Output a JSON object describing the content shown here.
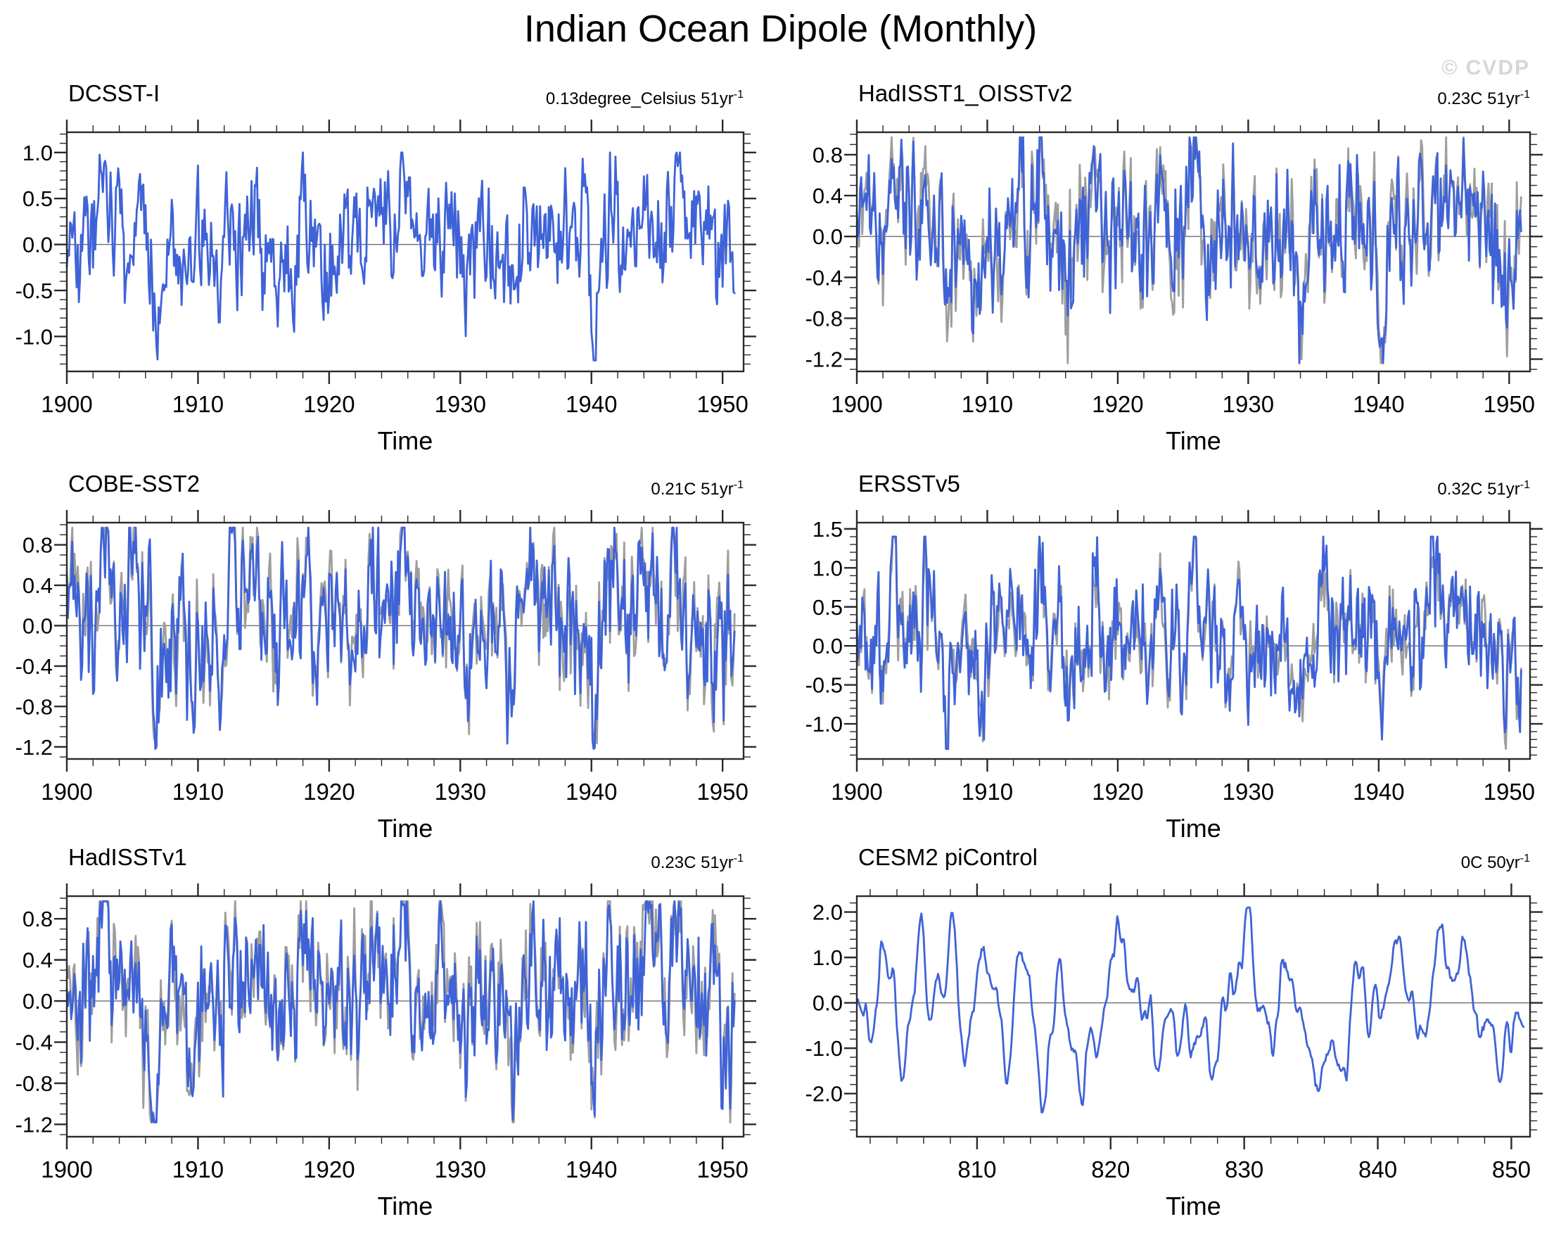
{
  "page_title": "Indian Ocean Dipole (Monthly)",
  "watermark": "© CVDP",
  "colors": {
    "series_blue": "#3F63D7",
    "series_gray": "#9E9E9E",
    "zero_line": "#6e6e6e",
    "axis": "#2a2a2a",
    "watermark_gray": "#d7d7d7"
  },
  "chart_data": [
    {
      "type": "line",
      "title": "DCSST-I",
      "trend_label": "0.13degree_Celsius 51yr",
      "trend_superscript": "-1",
      "xlabel": "Time",
      "xlim": [
        1900,
        1951.6
      ],
      "ylim": [
        -1.38,
        1.22
      ],
      "xticks": [
        1900,
        1910,
        1920,
        1930,
        1940,
        1950
      ],
      "xtick_labels": [
        "1900",
        "1910",
        "1920",
        "1930",
        "1940",
        "1950"
      ],
      "x_minor_step": 2,
      "yticks": [
        1.0,
        0.5,
        0.0,
        -0.5,
        -1.0
      ],
      "ytick_labels": [
        "1.0",
        "0.5",
        "0.0",
        "-0.5",
        "-1.0"
      ],
      "y_minor_step": 0.1,
      "zero_line": true,
      "n_points": 612,
      "x_start": 1900,
      "x_step_years": 0.0833333,
      "smooth": 1,
      "clamp": [
        -1.26,
        1.0
      ],
      "common": {
        "seed": 101,
        "ar": 0.5,
        "amp": 0.78
      },
      "events": [
        {
          "x": 1902.8,
          "amp": 0.95,
          "w": 0.5
        },
        {
          "x": 1905.2,
          "amp": 0.45,
          "w": 0.35
        },
        {
          "x": 1906.8,
          "amp": -0.95,
          "w": 0.4
        },
        {
          "x": 1909.5,
          "amp": -0.5,
          "w": 0.4
        },
        {
          "x": 1912.5,
          "amp": 0.5,
          "w": 0.45
        },
        {
          "x": 1914.0,
          "amp": 0.6,
          "w": 0.5
        },
        {
          "x": 1916.1,
          "amp": -0.55,
          "w": 0.4
        },
        {
          "x": 1918.2,
          "amp": 0.65,
          "w": 0.45
        },
        {
          "x": 1923.3,
          "amp": 0.7,
          "w": 0.4
        },
        {
          "x": 1925.8,
          "amp": 0.8,
          "w": 0.6
        },
        {
          "x": 1930.5,
          "amp": -0.4,
          "w": 0.5
        },
        {
          "x": 1933.9,
          "amp": -0.9,
          "w": 0.35
        },
        {
          "x": 1935.5,
          "amp": 0.55,
          "w": 0.6
        },
        {
          "x": 1940.2,
          "amp": -1.05,
          "w": 0.3
        },
        {
          "x": 1941.6,
          "amp": 0.55,
          "w": 0.4
        },
        {
          "x": 1944.3,
          "amp": 0.7,
          "w": 0.8
        },
        {
          "x": 1946.5,
          "amp": 0.5,
          "w": 0.5
        },
        {
          "x": 1950.0,
          "amp": -0.3,
          "w": 0.4
        }
      ],
      "series": [
        {
          "name": "DCSST-I",
          "color": "series_blue",
          "gain": 1.0,
          "own_seed": 11,
          "own_ar": 0.3,
          "own_amp": 0.0,
          "event_scale": 1.0
        }
      ]
    },
    {
      "type": "line",
      "title": "HadISST1_OISSTv2",
      "trend_label": "0.23C 51yr",
      "trend_superscript": "-1",
      "xlabel": "Time",
      "xlim": [
        1900,
        1951.6
      ],
      "ylim": [
        -1.32,
        1.02
      ],
      "xticks": [
        1900,
        1910,
        1920,
        1930,
        1940,
        1950
      ],
      "xtick_labels": [
        "1900",
        "1910",
        "1920",
        "1930",
        "1940",
        "1950"
      ],
      "x_minor_step": 2,
      "yticks": [
        0.8,
        0.4,
        0.0,
        -0.4,
        -0.8,
        -1.2
      ],
      "ytick_labels": [
        "0.8",
        "0.4",
        "0.0",
        "-0.4",
        "-0.8",
        "-1.2"
      ],
      "y_minor_step": 0.1,
      "zero_line": true,
      "n_points": 612,
      "x_start": 1900,
      "x_step_years": 0.0833333,
      "smooth": 1,
      "clamp": [
        -1.24,
        0.97
      ],
      "common": {
        "seed": 202,
        "ar": 0.5,
        "amp": 0.72
      },
      "events": [
        {
          "x": 1902.8,
          "amp": 0.95,
          "w": 0.5
        },
        {
          "x": 1905.2,
          "amp": 0.45,
          "w": 0.35
        },
        {
          "x": 1906.8,
          "amp": -0.95,
          "w": 0.4
        },
        {
          "x": 1909.5,
          "amp": -0.5,
          "w": 0.4
        },
        {
          "x": 1912.5,
          "amp": 0.5,
          "w": 0.45
        },
        {
          "x": 1914.0,
          "amp": 0.6,
          "w": 0.5
        },
        {
          "x": 1916.1,
          "amp": -0.55,
          "w": 0.4
        },
        {
          "x": 1918.2,
          "amp": 0.65,
          "w": 0.45
        },
        {
          "x": 1923.3,
          "amp": 0.7,
          "w": 0.4
        },
        {
          "x": 1925.8,
          "amp": 0.8,
          "w": 0.6
        },
        {
          "x": 1930.5,
          "amp": -0.4,
          "w": 0.5
        },
        {
          "x": 1933.9,
          "amp": -0.9,
          "w": 0.35
        },
        {
          "x": 1940.2,
          "amp": -1.05,
          "w": 0.3
        },
        {
          "x": 1941.6,
          "amp": 0.55,
          "w": 0.4
        },
        {
          "x": 1944.3,
          "amp": 0.7,
          "w": 0.8
        },
        {
          "x": 1946.5,
          "amp": 0.5,
          "w": 0.5
        },
        {
          "x": 1950.0,
          "amp": -0.3,
          "w": 0.4
        }
      ],
      "series": [
        {
          "name": "gray companion",
          "color": "series_gray",
          "gain": 1.04,
          "own_seed": 21,
          "own_ar": 0.35,
          "own_amp": 0.3,
          "event_scale": 1.08
        },
        {
          "name": "HadISST1_OISSTv2",
          "color": "series_blue",
          "gain": 0.97,
          "own_seed": 22,
          "own_ar": 0.35,
          "own_amp": 0.3,
          "event_scale": 1.0
        }
      ]
    },
    {
      "type": "line",
      "title": "COBE-SST2",
      "trend_label": "0.21C 51yr",
      "trend_superscript": "-1",
      "xlabel": "Time",
      "xlim": [
        1900,
        1951.6
      ],
      "ylim": [
        -1.32,
        1.02
      ],
      "xticks": [
        1900,
        1910,
        1920,
        1930,
        1940,
        1950
      ],
      "xtick_labels": [
        "1900",
        "1910",
        "1920",
        "1930",
        "1940",
        "1950"
      ],
      "x_minor_step": 2,
      "yticks": [
        0.8,
        0.4,
        0.0,
        -0.4,
        -0.8,
        -1.2
      ],
      "ytick_labels": [
        "0.8",
        "0.4",
        "0.0",
        "-0.4",
        "-0.8",
        "-1.2"
      ],
      "y_minor_step": 0.1,
      "zero_line": true,
      "n_points": 612,
      "x_start": 1900,
      "x_step_years": 0.0833333,
      "smooth": 1,
      "clamp": [
        -1.22,
        0.97
      ],
      "common": {
        "seed": 303,
        "ar": 0.5,
        "amp": 0.72
      },
      "events": [
        {
          "x": 1902.8,
          "amp": 0.95,
          "w": 0.5
        },
        {
          "x": 1905.2,
          "amp": 0.45,
          "w": 0.35
        },
        {
          "x": 1906.8,
          "amp": -0.95,
          "w": 0.4
        },
        {
          "x": 1909.5,
          "amp": -0.5,
          "w": 0.4
        },
        {
          "x": 1912.5,
          "amp": 0.5,
          "w": 0.45
        },
        {
          "x": 1914.0,
          "amp": 0.6,
          "w": 0.5
        },
        {
          "x": 1916.1,
          "amp": -0.55,
          "w": 0.4
        },
        {
          "x": 1918.2,
          "amp": 0.65,
          "w": 0.45
        },
        {
          "x": 1923.3,
          "amp": 0.7,
          "w": 0.4
        },
        {
          "x": 1925.8,
          "amp": 0.8,
          "w": 0.6
        },
        {
          "x": 1930.5,
          "amp": -0.4,
          "w": 0.5
        },
        {
          "x": 1933.9,
          "amp": -0.9,
          "w": 0.35
        },
        {
          "x": 1935.5,
          "amp": 0.55,
          "w": 0.6
        },
        {
          "x": 1940.2,
          "amp": -1.05,
          "w": 0.3
        },
        {
          "x": 1941.6,
          "amp": 0.55,
          "w": 0.4
        },
        {
          "x": 1944.3,
          "amp": 0.7,
          "w": 0.8
        },
        {
          "x": 1946.5,
          "amp": 0.5,
          "w": 0.5
        },
        {
          "x": 1950.0,
          "amp": -0.3,
          "w": 0.4
        }
      ],
      "series": [
        {
          "name": "gray companion",
          "color": "series_gray",
          "gain": 1.05,
          "own_seed": 31,
          "own_ar": 0.35,
          "own_amp": 0.3,
          "event_scale": 1.08
        },
        {
          "name": "COBE-SST2",
          "color": "series_blue",
          "gain": 0.97,
          "own_seed": 32,
          "own_ar": 0.35,
          "own_amp": 0.3,
          "event_scale": 1.0
        }
      ]
    },
    {
      "type": "line",
      "title": "ERSSTv5",
      "trend_label": "0.32C 51yr",
      "trend_superscript": "-1",
      "xlabel": "Time",
      "xlim": [
        1900,
        1951.6
      ],
      "ylim": [
        -1.45,
        1.58
      ],
      "xticks": [
        1900,
        1910,
        1920,
        1930,
        1940,
        1950
      ],
      "xtick_labels": [
        "1900",
        "1910",
        "1920",
        "1930",
        "1940",
        "1950"
      ],
      "x_minor_step": 2,
      "yticks": [
        1.5,
        1.0,
        0.5,
        0.0,
        -0.5,
        -1.0
      ],
      "ytick_labels": [
        "1.5",
        "1.0",
        "0.5",
        "0.0",
        "-0.5",
        "-1.0"
      ],
      "y_minor_step": 0.1,
      "zero_line": true,
      "n_points": 612,
      "x_start": 1900,
      "x_step_years": 0.0833333,
      "smooth": 1,
      "clamp": [
        -1.32,
        1.4
      ],
      "common": {
        "seed": 404,
        "ar": 0.5,
        "amp": 0.82
      },
      "events": [
        {
          "x": 1902.8,
          "amp": 0.95,
          "w": 0.5
        },
        {
          "x": 1905.2,
          "amp": 0.45,
          "w": 0.35
        },
        {
          "x": 1906.8,
          "amp": -1.0,
          "w": 0.4
        },
        {
          "x": 1909.5,
          "amp": -0.5,
          "w": 0.4
        },
        {
          "x": 1912.5,
          "amp": 0.5,
          "w": 0.45
        },
        {
          "x": 1914.0,
          "amp": 0.6,
          "w": 0.5
        },
        {
          "x": 1916.1,
          "amp": -0.6,
          "w": 0.4
        },
        {
          "x": 1918.2,
          "amp": 0.7,
          "w": 0.45
        },
        {
          "x": 1923.3,
          "amp": 0.8,
          "w": 0.4
        },
        {
          "x": 1925.8,
          "amp": 0.85,
          "w": 0.6
        },
        {
          "x": 1930.5,
          "amp": -0.45,
          "w": 0.5
        },
        {
          "x": 1933.9,
          "amp": -0.95,
          "w": 0.35
        },
        {
          "x": 1935.5,
          "amp": 0.6,
          "w": 0.6
        },
        {
          "x": 1940.2,
          "amp": -1.1,
          "w": 0.3
        },
        {
          "x": 1941.6,
          "amp": 0.6,
          "w": 0.4
        },
        {
          "x": 1944.3,
          "amp": 0.85,
          "w": 0.8
        },
        {
          "x": 1946.5,
          "amp": 0.55,
          "w": 0.5
        },
        {
          "x": 1950.0,
          "amp": -0.35,
          "w": 0.4
        }
      ],
      "series": [
        {
          "name": "gray companion",
          "color": "series_gray",
          "gain": 0.92,
          "own_seed": 41,
          "own_ar": 0.35,
          "own_amp": 0.3,
          "event_scale": 0.95
        },
        {
          "name": "ERSSTv5",
          "color": "series_blue",
          "gain": 1.0,
          "own_seed": 42,
          "own_ar": 0.35,
          "own_amp": 0.3,
          "event_scale": 1.1
        }
      ]
    },
    {
      "type": "line",
      "title": "HadISSTv1",
      "trend_label": "0.23C 51yr",
      "trend_superscript": "-1",
      "xlabel": "Time",
      "xlim": [
        1900,
        1951.6
      ],
      "ylim": [
        -1.32,
        1.02
      ],
      "xticks": [
        1900,
        1910,
        1920,
        1930,
        1940,
        1950
      ],
      "xtick_labels": [
        "1900",
        "1910",
        "1920",
        "1930",
        "1940",
        "1950"
      ],
      "x_minor_step": 2,
      "yticks": [
        0.8,
        0.4,
        0.0,
        -0.4,
        -0.8,
        -1.2
      ],
      "ytick_labels": [
        "0.8",
        "0.4",
        "0.0",
        "-0.4",
        "-0.8",
        "-1.2"
      ],
      "y_minor_step": 0.1,
      "zero_line": true,
      "n_points": 612,
      "x_start": 1900,
      "x_step_years": 0.0833333,
      "smooth": 1,
      "clamp": [
        -1.18,
        0.97
      ],
      "common": {
        "seed": 505,
        "ar": 0.5,
        "amp": 0.72
      },
      "events": [
        {
          "x": 1902.8,
          "amp": 0.95,
          "w": 0.5
        },
        {
          "x": 1905.2,
          "amp": 0.45,
          "w": 0.35
        },
        {
          "x": 1906.8,
          "amp": -1.0,
          "w": 0.4
        },
        {
          "x": 1909.5,
          "amp": -0.5,
          "w": 0.4
        },
        {
          "x": 1912.5,
          "amp": 0.5,
          "w": 0.45
        },
        {
          "x": 1914.0,
          "amp": 0.6,
          "w": 0.5
        },
        {
          "x": 1916.1,
          "amp": -0.55,
          "w": 0.4
        },
        {
          "x": 1918.2,
          "amp": 0.65,
          "w": 0.45
        },
        {
          "x": 1923.3,
          "amp": 0.7,
          "w": 0.4
        },
        {
          "x": 1925.8,
          "amp": 0.85,
          "w": 0.6
        },
        {
          "x": 1930.5,
          "amp": -0.4,
          "w": 0.5
        },
        {
          "x": 1933.9,
          "amp": -0.95,
          "w": 0.35
        },
        {
          "x": 1935.5,
          "amp": 0.55,
          "w": 0.6
        },
        {
          "x": 1940.2,
          "amp": -1.05,
          "w": 0.3
        },
        {
          "x": 1941.6,
          "amp": 0.55,
          "w": 0.4
        },
        {
          "x": 1944.3,
          "amp": 0.7,
          "w": 0.8
        },
        {
          "x": 1946.5,
          "amp": 0.5,
          "w": 0.5
        },
        {
          "x": 1950.0,
          "amp": -0.3,
          "w": 0.4
        }
      ],
      "series": [
        {
          "name": "gray companion",
          "color": "series_gray",
          "gain": 1.05,
          "own_seed": 51,
          "own_ar": 0.35,
          "own_amp": 0.3,
          "event_scale": 1.08
        },
        {
          "name": "HadISSTv1",
          "color": "series_blue",
          "gain": 0.97,
          "own_seed": 52,
          "own_ar": 0.35,
          "own_amp": 0.3,
          "event_scale": 1.0
        }
      ]
    },
    {
      "type": "line",
      "title": "CESM2 piControl",
      "trend_label": "0C 50yr",
      "trend_superscript": "-1",
      "xlabel": "Time",
      "xlim": [
        801,
        851.4
      ],
      "ylim": [
        -2.95,
        2.35
      ],
      "xticks": [
        810,
        820,
        830,
        840,
        850
      ],
      "xtick_labels": [
        "810",
        "820",
        "830",
        "840",
        "850"
      ],
      "x_minor_step": 2,
      "yticks": [
        2.0,
        1.0,
        0.0,
        -1.0,
        -2.0
      ],
      "ytick_labels": [
        "2.0",
        "1.0",
        "0.0",
        "-1.0",
        "-2.0"
      ],
      "y_minor_step": 0.2,
      "zero_line": true,
      "n_points": 600,
      "x_start": 801,
      "x_step_years": 0.0833333,
      "smooth": 3,
      "clamp": [
        -2.65,
        2.1
      ],
      "common": {
        "seed": 606,
        "ar": 0.88,
        "amp": 0.7
      },
      "events": [
        {
          "x": 803.0,
          "amp": 1.2,
          "w": 0.5
        },
        {
          "x": 804.6,
          "amp": -2.4,
          "w": 0.45
        },
        {
          "x": 805.8,
          "amp": 1.7,
          "w": 0.35
        },
        {
          "x": 808.2,
          "amp": 1.5,
          "w": 0.4
        },
        {
          "x": 812.0,
          "amp": -0.8,
          "w": 0.5
        },
        {
          "x": 814.9,
          "amp": -1.9,
          "w": 0.5
        },
        {
          "x": 816.2,
          "amp": 0.9,
          "w": 0.3
        },
        {
          "x": 817.8,
          "amp": -2.0,
          "w": 0.45
        },
        {
          "x": 820.6,
          "amp": 1.2,
          "w": 0.4
        },
        {
          "x": 823.5,
          "amp": -1.1,
          "w": 0.45
        },
        {
          "x": 827.6,
          "amp": -1.3,
          "w": 0.4
        },
        {
          "x": 830.1,
          "amp": 1.5,
          "w": 0.45
        },
        {
          "x": 833.0,
          "amp": 0.9,
          "w": 0.5
        },
        {
          "x": 835.7,
          "amp": -2.0,
          "w": 0.55
        },
        {
          "x": 837.6,
          "amp": -1.6,
          "w": 0.4
        },
        {
          "x": 841.3,
          "amp": 1.3,
          "w": 0.4
        },
        {
          "x": 843.5,
          "amp": -0.9,
          "w": 0.5
        },
        {
          "x": 846.4,
          "amp": 1.7,
          "w": 0.4
        },
        {
          "x": 848.9,
          "amp": -1.2,
          "w": 0.45
        }
      ],
      "series": [
        {
          "name": "CESM2 piControl",
          "color": "series_blue",
          "gain": 1.0,
          "own_seed": 61,
          "own_ar": 0.3,
          "own_amp": 0.0,
          "event_scale": 1.0
        }
      ]
    }
  ]
}
